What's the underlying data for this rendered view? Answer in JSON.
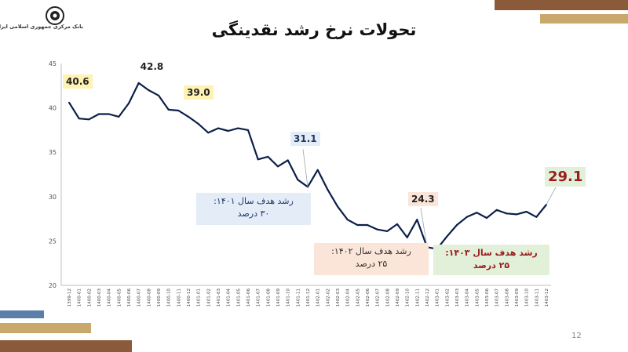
{
  "header": {
    "bank_name": "بانک مرکزی جمهوری اسلامی ایران",
    "title": "تحولات نرخ رشد نقدینگی"
  },
  "page_number": "12",
  "colors": {
    "line": "#0b1f4a",
    "box_yellow": "#fff2b3",
    "box_blue": "#e4ecf7",
    "box_peach": "#fbe4d8",
    "box_green": "#e2f0d9",
    "highlight_red": "#9a1c1c",
    "deco_gold": "#c9a96b",
    "deco_blue": "#5b7fa8",
    "deco_brown": "#8a5a3b"
  },
  "annotations": [
    {
      "line1": "رشد هدف سال ۱۴۰۱:",
      "line2": "۳۰ درصد",
      "color": "#1f3864",
      "bg": "#e4ecf7"
    },
    {
      "line1": "رشد هدف سال ۱۴۰۲:",
      "line2": "۲۵ درصد",
      "color": "#333333",
      "bg": "#fbe4d8"
    },
    {
      "line1": "رشد هدف سال ۱۴۰۳:",
      "line2": "۲۵ درصد",
      "color": "#9a1c1c",
      "bg": "#e2f0d9"
    }
  ],
  "chart_data": {
    "type": "line",
    "title": "تحولات نرخ رشد نقدینگی",
    "xlabel": "",
    "ylabel": "",
    "ylim": [
      20,
      45
    ],
    "yticks": [
      20,
      25,
      30,
      35,
      40,
      45
    ],
    "grid": false,
    "x": [
      "1399-12",
      "1400-01",
      "1400-02",
      "1400-03",
      "1400-04",
      "1400-05",
      "1400-06",
      "1400-07",
      "1400-08",
      "1400-09",
      "1400-10",
      "1400-11",
      "1400-12",
      "1401-01",
      "1401-02",
      "1401-03",
      "1401-04",
      "1401-05",
      "1401-06",
      "1401-07",
      "1401-08",
      "1401-09",
      "1401-10",
      "1401-11",
      "1401-12",
      "1402-01",
      "1402-02",
      "1402-03",
      "1402-04",
      "1402-05",
      "1402-06",
      "1402-07",
      "1402-08",
      "1402-09",
      "1402-10",
      "1402-11",
      "1402-12",
      "1403-01",
      "1403-02",
      "1403-03",
      "1403-04",
      "1403-05",
      "1403-06",
      "1403-07",
      "1403-08",
      "1403-09",
      "1403-10",
      "1403-11",
      "1403-12"
    ],
    "series": [
      {
        "values": [
          40.6,
          38.8,
          38.7,
          39.3,
          39.3,
          39.0,
          40.5,
          42.8,
          42.0,
          41.4,
          39.8,
          39.7,
          39.0,
          38.2,
          37.2,
          37.7,
          37.4,
          37.7,
          37.5,
          34.2,
          34.5,
          33.4,
          34.1,
          31.9,
          31.1,
          33.0,
          30.8,
          28.9,
          27.4,
          26.8,
          26.8,
          26.3,
          26.1,
          26.9,
          25.4,
          27.4,
          24.3,
          24.1,
          25.5,
          26.8,
          27.7,
          28.2,
          27.6,
          28.5,
          28.1,
          28.0,
          28.3,
          27.7,
          29.1
        ]
      }
    ],
    "data_labels": [
      {
        "x": "1399-12",
        "value": "40.6",
        "style": "yellow"
      },
      {
        "x": "1400-07",
        "value": "42.8",
        "style": "plain"
      },
      {
        "x": "1400-12",
        "value": "39.0",
        "style": "yellow"
      },
      {
        "x": "1401-12",
        "value": "31.1",
        "style": "blue"
      },
      {
        "x": "1402-12",
        "value": "24.3",
        "style": "peach"
      },
      {
        "x": "1403-12",
        "value": "29.1",
        "style": "green"
      }
    ]
  }
}
